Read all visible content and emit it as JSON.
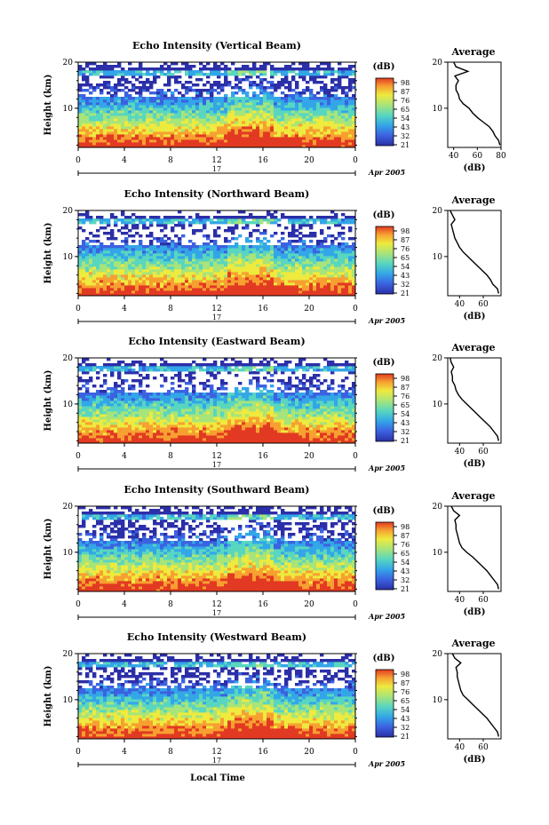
{
  "panels": [
    {
      "title": "Echo Intensity (Vertical Beam)",
      "ylabel": "Height (km)",
      "cb_unit": "(dB)",
      "avg_title": "Average",
      "avg_xlabel": "(dB)",
      "avg_xticks": [
        "40",
        "60",
        "80"
      ]
    },
    {
      "title": "Echo Intensity (Northward Beam)",
      "ylabel": "Height (km)",
      "cb_unit": "(dB)",
      "avg_title": "Average",
      "avg_xlabel": "(dB)",
      "avg_xticks": [
        "40",
        "60"
      ]
    },
    {
      "title": "Echo Intensity (Eastward Beam)",
      "ylabel": "Height (km)",
      "cb_unit": "(dB)",
      "avg_title": "Average",
      "avg_xlabel": "(dB)",
      "avg_xticks": [
        "40",
        "60"
      ]
    },
    {
      "title": "Echo Intensity (Southward Beam)",
      "ylabel": "Height (km)",
      "cb_unit": "(dB)",
      "avg_title": "Average",
      "avg_xlabel": "(dB)",
      "avg_xticks": [
        "40",
        "60"
      ]
    },
    {
      "title": "Echo Intensity (Westward Beam)",
      "ylabel": "Height (km)",
      "cb_unit": "(dB)",
      "avg_title": "Average",
      "avg_xlabel": "(dB)",
      "avg_xticks": [
        "40",
        "60"
      ]
    }
  ],
  "x_ticks": [
    "0",
    "4",
    "8",
    "12",
    "16",
    "20",
    "0"
  ],
  "y_ticks": [
    "10",
    "20"
  ],
  "avg_y_ticks": [
    "10",
    "20"
  ],
  "date_day": "17",
  "date_label": "Apr 2005",
  "bottom_xlabel": "Local Time",
  "chart_data": [
    {
      "type": "heatmap",
      "title": "Echo Intensity (Vertical Beam)",
      "xlabel": "",
      "ylabel": "Height (km)",
      "xlim": [
        0,
        24
      ],
      "ylim": [
        1.5,
        20
      ],
      "colorbar_unit": "(dB)",
      "colorbar_ticks": [
        21,
        32,
        43,
        54,
        65,
        76,
        87,
        98
      ],
      "average_profile": {
        "xlabel": "(dB)",
        "xlim": [
          35,
          80
        ],
        "height_km": [
          2,
          3,
          4,
          5,
          6,
          7,
          8,
          9,
          10,
          11,
          12,
          13,
          14,
          15,
          16,
          17,
          18,
          19,
          20
        ],
        "db": [
          79,
          78,
          75,
          73,
          70,
          65,
          60,
          56,
          53,
          48,
          45,
          44,
          42,
          42,
          44,
          41,
          52,
          42,
          40
        ]
      }
    },
    {
      "type": "heatmap",
      "title": "Echo Intensity (Northward Beam)",
      "xlabel": "",
      "ylabel": "Height (km)",
      "xlim": [
        0,
        24
      ],
      "ylim": [
        1.5,
        20
      ],
      "colorbar_unit": "(dB)",
      "colorbar_ticks": [
        21,
        32,
        43,
        54,
        65,
        76,
        87,
        98
      ],
      "average_profile": {
        "xlabel": "(dB)",
        "xlim": [
          30,
          75
        ],
        "height_km": [
          2,
          3,
          4,
          5,
          6,
          7,
          8,
          9,
          10,
          11,
          12,
          13,
          14,
          15,
          16,
          17,
          18,
          19,
          20
        ],
        "db": [
          73,
          72,
          68,
          66,
          63,
          59,
          55,
          51,
          47,
          43,
          40,
          38,
          36,
          35,
          34,
          33,
          36,
          34,
          32
        ]
      }
    },
    {
      "type": "heatmap",
      "title": "Echo Intensity (Eastward Beam)",
      "xlabel": "",
      "ylabel": "Height (km)",
      "xlim": [
        0,
        24
      ],
      "ylim": [
        1.5,
        20
      ],
      "colorbar_unit": "(dB)",
      "colorbar_ticks": [
        21,
        32,
        43,
        54,
        65,
        76,
        87,
        98
      ],
      "average_profile": {
        "xlabel": "(dB)",
        "xlim": [
          30,
          75
        ],
        "height_km": [
          2,
          3,
          4,
          5,
          6,
          7,
          8,
          9,
          10,
          11,
          12,
          13,
          14,
          15,
          16,
          17,
          18,
          19,
          20
        ],
        "db": [
          73,
          72,
          69,
          66,
          62,
          58,
          54,
          50,
          46,
          42,
          39,
          37,
          36,
          34,
          34,
          33,
          35,
          33,
          32
        ]
      }
    },
    {
      "type": "heatmap",
      "title": "Echo Intensity (Southward Beam)",
      "xlabel": "",
      "ylabel": "Height (km)",
      "xlim": [
        0,
        24
      ],
      "ylim": [
        1.5,
        20
      ],
      "colorbar_unit": "(dB)",
      "colorbar_ticks": [
        21,
        32,
        43,
        54,
        65,
        76,
        87,
        98
      ],
      "average_profile": {
        "xlabel": "(dB)",
        "xlim": [
          30,
          75
        ],
        "height_km": [
          2,
          3,
          4,
          5,
          6,
          7,
          8,
          9,
          10,
          11,
          12,
          13,
          14,
          15,
          16,
          17,
          18,
          19,
          20
        ],
        "db": [
          73,
          72,
          69,
          66,
          63,
          59,
          55,
          51,
          46,
          42,
          40,
          39,
          38,
          37,
          37,
          36,
          40,
          35,
          33
        ]
      }
    },
    {
      "type": "heatmap",
      "title": "Echo Intensity (Westward Beam)",
      "xlabel": "Local Time",
      "ylabel": "Height (km)",
      "xlim": [
        0,
        24
      ],
      "ylim": [
        1.5,
        20
      ],
      "colorbar_unit": "(dB)",
      "colorbar_ticks": [
        21,
        32,
        43,
        54,
        65,
        76,
        87,
        98
      ],
      "average_profile": {
        "xlabel": "(dB)",
        "xlim": [
          30,
          75
        ],
        "height_km": [
          2,
          3,
          4,
          5,
          6,
          7,
          8,
          9,
          10,
          11,
          12,
          13,
          14,
          15,
          16,
          17,
          18,
          19,
          20
        ],
        "db": [
          73,
          72,
          69,
          66,
          63,
          59,
          55,
          51,
          47,
          43,
          41,
          40,
          39,
          38,
          38,
          37,
          41,
          36,
          34
        ]
      }
    }
  ],
  "colorbar_labels": [
    "98",
    "87",
    "76",
    "65",
    "54",
    "43",
    "32",
    "21"
  ],
  "colors": {
    "scale": [
      "#2b2fa8",
      "#3b62e0",
      "#33a6e8",
      "#58d6c0",
      "#a7e47a",
      "#eeea3e",
      "#f7a031",
      "#e23a22"
    ]
  }
}
